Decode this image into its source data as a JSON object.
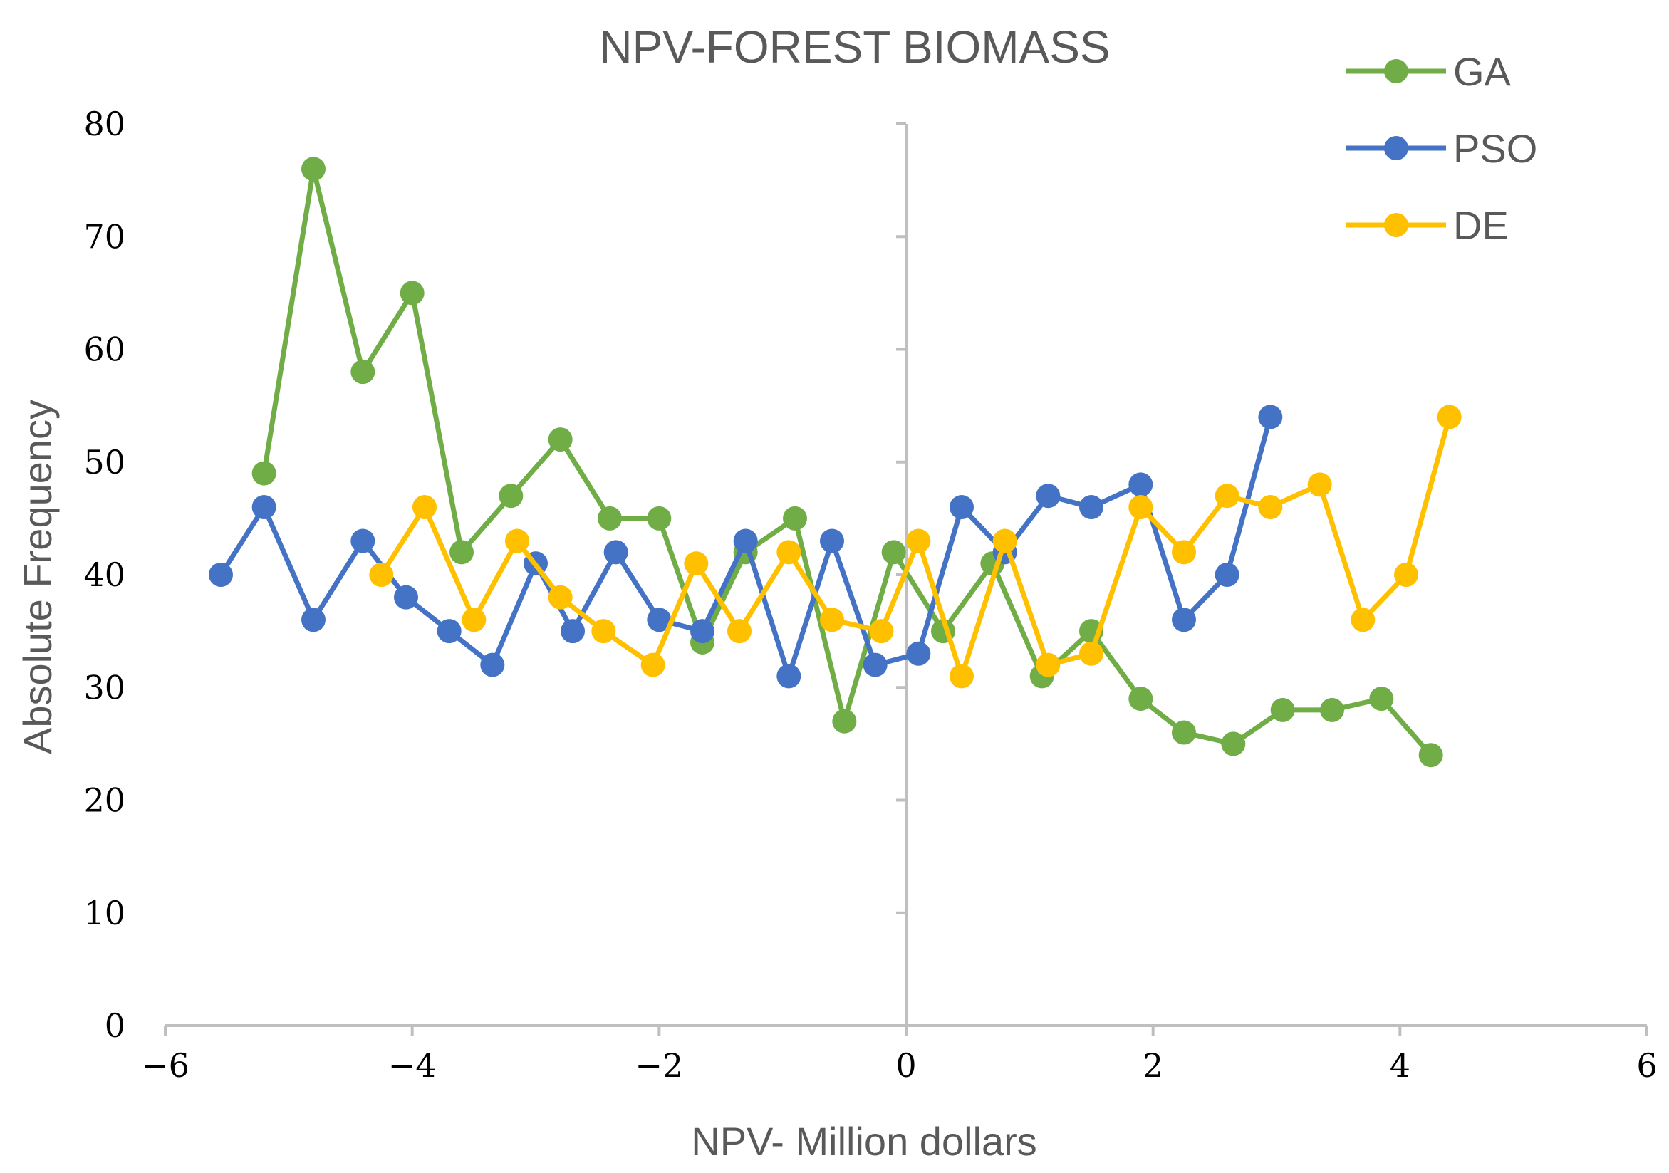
{
  "chart_data": {
    "type": "line",
    "title": "NPV-FOREST BIOMASS",
    "xlabel": "NPV- Million dollars",
    "ylabel": "Absolute Frequency",
    "xlim": [
      -6,
      6
    ],
    "ylim": [
      0,
      80
    ],
    "x_ticks": [
      -6,
      -4,
      -2,
      0,
      2,
      4,
      6
    ],
    "x_tick_labels": [
      "−6",
      "−4",
      "−2",
      "0",
      "2",
      "4",
      "6"
    ],
    "y_ticks": [
      0,
      10,
      20,
      30,
      40,
      50,
      60,
      70,
      80
    ],
    "y_tick_labels": [
      "0",
      "10",
      "20",
      "30",
      "40",
      "50",
      "60",
      "70",
      "80"
    ],
    "grid": false,
    "legend_position": "top-right",
    "series": [
      {
        "name": "GA",
        "color": "#70ad47",
        "x": [
          -5.2,
          -4.8,
          -4.4,
          -4.0,
          -3.6,
          -3.2,
          -2.8,
          -2.4,
          -2.0,
          -1.65,
          -1.3,
          -0.9,
          -0.5,
          -0.1,
          0.3,
          0.7,
          1.1,
          1.5,
          1.9,
          2.25,
          2.65,
          3.05,
          3.45,
          3.85,
          4.25
        ],
        "y": [
          49,
          76,
          58,
          65,
          42,
          47,
          52,
          45,
          45,
          34,
          42,
          45,
          27,
          42,
          35,
          41,
          31,
          35,
          29,
          26,
          25,
          28,
          28,
          29,
          24
        ]
      },
      {
        "name": "PSO",
        "color": "#4472c4",
        "x": [
          -5.55,
          -5.2,
          -4.8,
          -4.4,
          -4.05,
          -3.7,
          -3.35,
          -3.0,
          -2.7,
          -2.35,
          -2.0,
          -1.65,
          -1.3,
          -0.95,
          -0.6,
          -0.25,
          0.1,
          0.45,
          0.8,
          1.15,
          1.5,
          1.9,
          2.25,
          2.6,
          2.95
        ],
        "y": [
          40,
          46,
          36,
          43,
          38,
          35,
          32,
          41,
          35,
          42,
          36,
          35,
          43,
          31,
          43,
          32,
          33,
          46,
          42,
          47,
          46,
          48,
          36,
          40,
          54
        ]
      },
      {
        "name": "DE",
        "color": "#ffc000",
        "x": [
          -4.25,
          -3.9,
          -3.5,
          -3.15,
          -2.8,
          -2.45,
          -2.05,
          -1.7,
          -1.35,
          -0.95,
          -0.6,
          -0.2,
          0.1,
          0.45,
          0.8,
          1.15,
          1.5,
          1.9,
          2.25,
          2.6,
          2.95,
          3.35,
          3.7,
          4.05,
          4.4
        ],
        "y": [
          40,
          46,
          36,
          43,
          38,
          35,
          32,
          41,
          35,
          42,
          36,
          35,
          43,
          31,
          43,
          32,
          33,
          46,
          42,
          47,
          46,
          48,
          36,
          40,
          54
        ]
      }
    ]
  }
}
